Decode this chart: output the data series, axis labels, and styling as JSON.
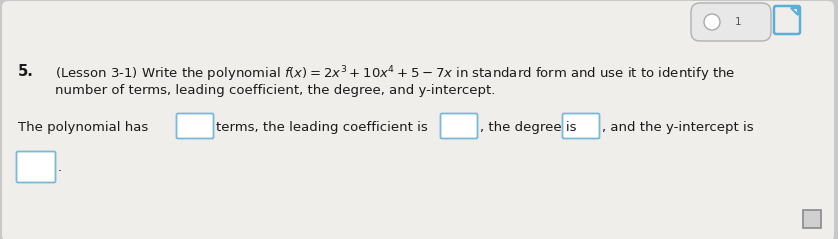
{
  "background_color": "#c8c8c8",
  "card_color": "#f0eeeb",
  "number": "5.",
  "line1": "(Lesson 3-1) Write the polynomial $f(x) = 2x^3 + 10x^4 + 5 - 7x$ in standard form and use it to identify the",
  "line2": "number of terms, leading coefficient, the degree, and y-intercept.",
  "text_color": "#1a1a1a",
  "font_size_main": 9.5,
  "font_size_number": 10.5,
  "box_edge_color": "#7ab8d4",
  "box_face_color": "#ffffff",
  "pill_bg": "#e8e8e8",
  "pill_edge": "#b0b0b0",
  "pill_dot": "#ffffff",
  "pill_text": "1",
  "doc_icon_color": "#5bafd6",
  "small_sq_edge": "#8a8a8a",
  "small_sq_face": "#d0d0d0"
}
